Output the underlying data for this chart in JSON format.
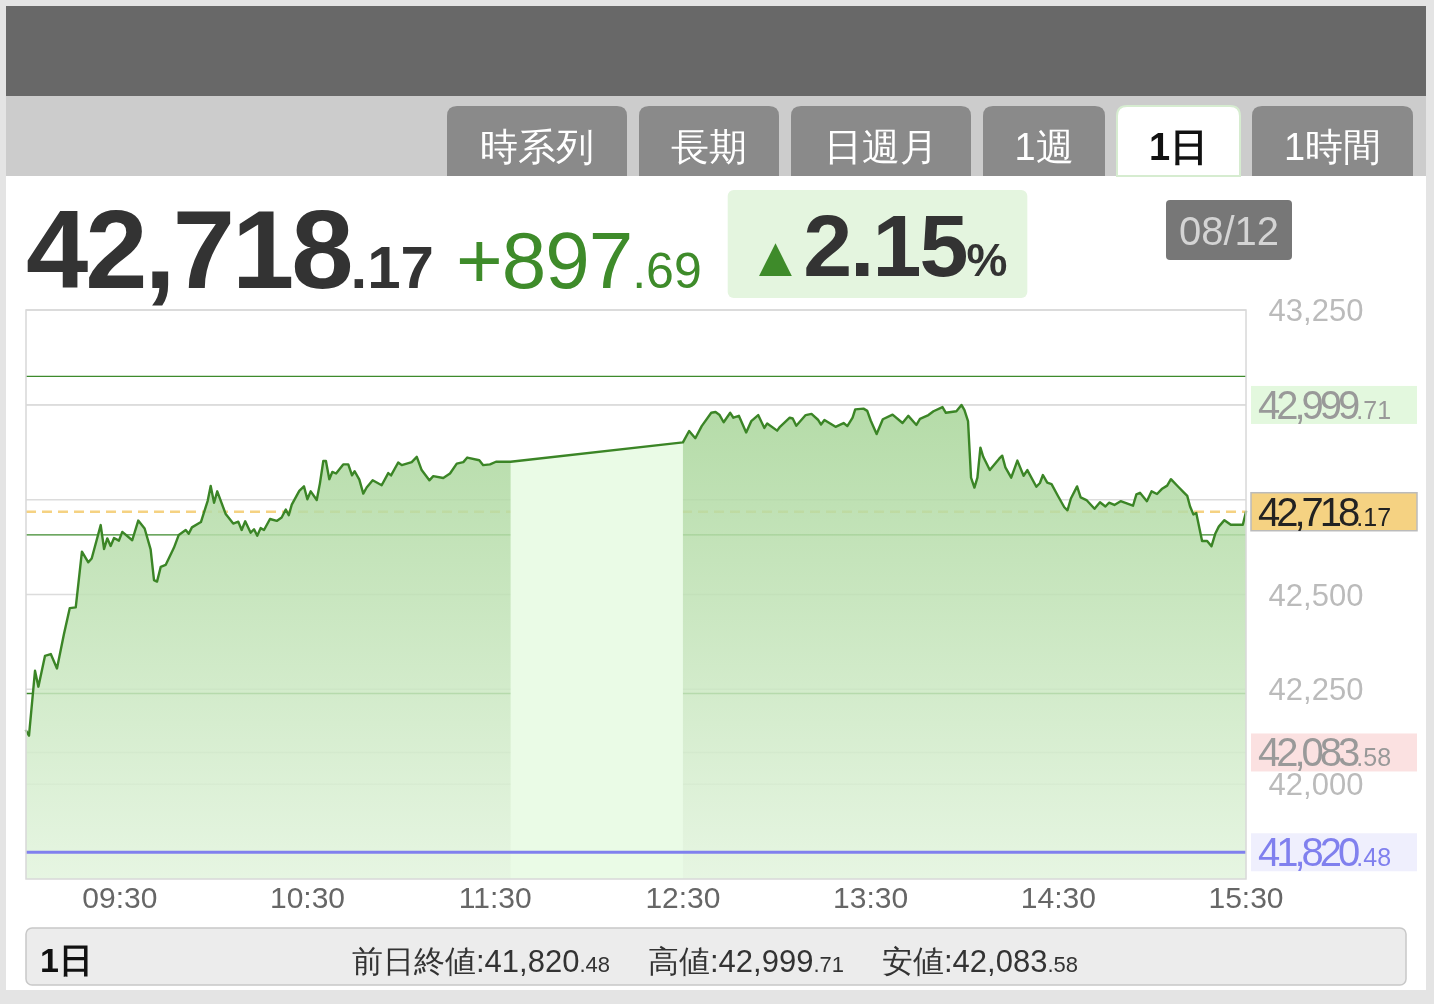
{
  "chart_data": {
    "type": "area",
    "color": "#3b8526",
    "x": [
      9.0,
      9.016,
      9.048,
      9.066,
      9.101,
      9.132,
      9.165,
      9.202,
      9.233,
      9.265,
      9.298,
      9.332,
      9.35,
      9.398,
      9.416,
      9.433,
      9.451,
      9.469,
      9.495,
      9.513,
      9.566,
      9.598,
      9.632,
      9.664,
      9.682,
      9.698,
      9.718,
      9.744,
      9.788,
      9.814,
      9.851,
      9.867,
      9.884,
      9.932,
      9.968,
      9.984,
      10.002,
      10.019,
      10.064,
      10.104,
      10.131,
      10.149,
      10.168,
      10.197,
      10.215,
      10.232,
      10.25,
      10.268,
      10.3,
      10.336,
      10.362,
      10.384,
      10.4,
      10.416,
      10.456,
      10.481,
      10.499,
      10.517,
      10.549,
      10.566,
      10.584,
      10.598,
      10.616,
      10.632,
      10.652,
      10.69,
      10.717,
      10.737,
      10.751,
      10.776,
      10.797,
      10.815,
      10.847,
      10.895,
      10.93,
      10.945,
      10.983,
      11.002,
      11.055,
      11.082,
      11.108,
      11.149,
      11.17,
      11.223,
      11.259,
      11.295,
      11.33,
      11.351,
      11.415,
      11.436,
      11.472,
      11.504,
      11.582,
      12.5,
      12.533,
      12.566,
      12.6,
      12.651,
      12.674,
      12.694,
      12.717,
      12.752,
      12.769,
      12.798,
      12.837,
      12.864,
      12.901,
      12.934,
      12.949,
      13.002,
      13.017,
      13.069,
      13.085,
      13.104,
      13.154,
      13.185,
      13.221,
      13.236,
      13.254,
      13.313,
      13.356,
      13.376,
      13.404,
      13.418,
      13.462,
      13.482,
      13.501,
      13.532,
      13.565,
      13.617,
      13.67,
      13.701,
      13.744,
      13.763,
      13.808,
      13.835,
      13.883,
      13.901,
      13.957,
      13.984,
      14.0,
      14.019,
      14.035,
      14.053,
      14.069,
      14.085,
      14.1,
      14.135,
      14.185,
      14.201,
      14.218,
      14.249,
      14.282,
      14.315,
      14.335,
      14.383,
      14.402,
      14.418,
      14.441,
      14.464,
      14.499,
      14.532,
      14.549,
      14.567,
      14.6,
      14.619,
      14.65,
      14.693,
      14.722,
      14.751,
      14.77,
      14.799,
      14.832,
      14.898,
      14.916,
      14.935,
      14.972,
      14.997,
      15.026,
      15.051,
      15.08,
      15.1,
      15.139,
      15.167,
      15.187,
      15.202,
      15.22,
      15.235,
      15.266,
      15.293,
      15.316,
      15.336,
      15.355,
      15.385,
      15.419,
      15.483,
      15.5
    ],
    "values": [
      42141,
      42128,
      42299,
      42257,
      42338,
      42343,
      42305,
      42395,
      42464,
      42466,
      42613,
      42585,
      42595,
      42683,
      42620,
      42648,
      42628,
      42649,
      42642,
      42665,
      42643,
      42695,
      42674,
      42619,
      42538,
      42534,
      42573,
      42578,
      42623,
      42657,
      42670,
      42660,
      42677,
      42691,
      42747,
      42786,
      42742,
      42772,
      42712,
      42687,
      42692,
      42670,
      42693,
      42663,
      42672,
      42655,
      42675,
      42670,
      42699,
      42694,
      42703,
      42724,
      42709,
      42737,
      42773,
      42785,
      42751,
      42772,
      42749,
      42793,
      42852,
      42852,
      42804,
      42823,
      42819,
      42843,
      42843,
      42814,
      42825,
      42803,
      42766,
      42782,
      42801,
      42788,
      42820,
      42814,
      42848,
      42841,
      42849,
      42863,
      42828,
      42801,
      42812,
      42807,
      42819,
      42845,
      42849,
      42861,
      42854,
      42841,
      42843,
      42850,
      42850,
      42901,
      42931,
      42912,
      42944,
      42979,
      42981,
      42974,
      42954,
      42979,
      42966,
      42971,
      42927,
      42957,
      42973,
      42939,
      42951,
      42932,
      42942,
      42966,
      42964,
      42945,
      42973,
      42976,
      42960,
      42948,
      42960,
      42942,
      42952,
      42944,
      42966,
      42988,
      42990,
      42984,
      42958,
      42923,
      42962,
      42974,
      42952,
      42971,
      42947,
      42963,
      42973,
      42983,
      42994,
      42979,
      42983,
      42999.71,
      42986,
      42957,
      42808,
      42782,
      42808,
      42887,
      42863,
      42828,
      42858,
      42866,
      42835,
      42808,
      42853,
      42813,
      42828,
      42784,
      42794,
      42815,
      42795,
      42791,
      42759,
      42730,
      42722,
      42753,
      42785,
      42756,
      42749,
      42726,
      42743,
      42732,
      42742,
      42736,
      42746,
      42734,
      42764,
      42768,
      42746,
      42772,
      42765,
      42778,
      42787,
      42804,
      42784,
      42770,
      42760,
      42732,
      42711,
      42715,
      42641,
      42641,
      42627,
      42660,
      42679,
      42696,
      42684,
      42684,
      42718.17
    ],
    "xlim": [
      9,
      15.5
    ],
    "xticks": [
      {
        "value": 9.5,
        "label": "09:30"
      },
      {
        "value": 10.5,
        "label": "10:30"
      },
      {
        "value": 11.5,
        "label": "11:30"
      },
      {
        "value": 12.5,
        "label": "12:30"
      },
      {
        "value": 13.5,
        "label": "13:30"
      },
      {
        "value": 14.5,
        "label": "14:30"
      },
      {
        "value": 15.5,
        "label": "15:30"
      }
    ],
    "ylim": [
      41750,
      43250
    ],
    "yticks": [
      {
        "value": 42000,
        "label": "42,000"
      },
      {
        "value": 42083.58,
        "label": "42,083.58"
      },
      {
        "value": 42250,
        "label": "42,250"
      },
      {
        "value": 42500,
        "label": "42,500"
      },
      {
        "value": 42750,
        "label": null
      },
      {
        "value": 42999.71,
        "label": "42,999.71"
      },
      {
        "value": 43000,
        "label": null
      },
      {
        "value": 43250,
        "label": "43,250"
      }
    ],
    "grid": "y",
    "ref_lines": [
      {
        "axis": "y",
        "value": 42239,
        "color": "#3d8a2c"
      },
      {
        "axis": "y",
        "value": 42657,
        "color": "#3d8a2c"
      },
      {
        "axis": "y",
        "value": 43075,
        "color": "#3d8a2c"
      },
      {
        "axis": "y",
        "value": 42718.17,
        "label": "42,718.17",
        "color": "#f5d282",
        "line_style": "dashed"
      },
      {
        "axis": "y",
        "value": 41820.48,
        "label": "41,820.48",
        "color": "#8080ee"
      }
    ],
    "bands": [
      {
        "axis": "x",
        "from": 11.582,
        "to": 12.5,
        "color": "#eafbe6"
      }
    ],
    "annotations": [
      "時系列",
      "長期",
      "日週月",
      "1週",
      "1日",
      "1時間",
      "42,718.17",
      "+897.69",
      "▲2.15%",
      "08/12",
      "1日",
      "前日終値:41,820.48",
      "高値:42,999.71",
      "安値:42,083.58"
    ]
  }
}
